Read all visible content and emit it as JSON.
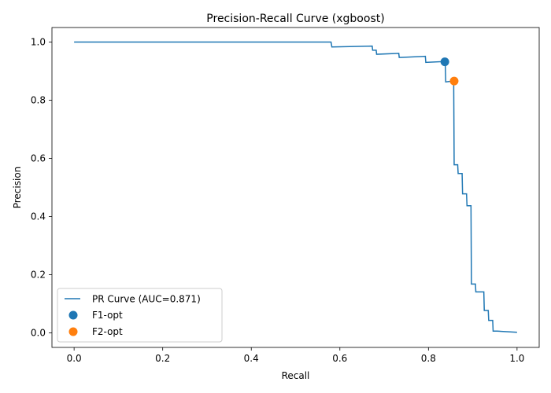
{
  "chart_data": {
    "type": "line",
    "title": "Precision-Recall Curve (xgboost)",
    "xlabel": "Recall",
    "ylabel": "Precision",
    "xlim": [
      -0.05,
      1.05
    ],
    "ylim": [
      -0.05,
      1.05
    ],
    "xticks": [
      0.0,
      0.2,
      0.4,
      0.6,
      0.8,
      1.0
    ],
    "xtick_labels": [
      "0.0",
      "0.2",
      "0.4",
      "0.6",
      "0.8",
      "1.0"
    ],
    "yticks": [
      0.0,
      0.2,
      0.4,
      0.6,
      0.8,
      1.0
    ],
    "ytick_labels": [
      "0.0",
      "0.2",
      "0.4",
      "0.6",
      "0.8",
      "1.0"
    ],
    "grid": false,
    "legend_position": "lower-left",
    "series": [
      {
        "name": "PR Curve (AUC=0.871)",
        "color": "#1f77b4",
        "points": [
          [
            0.0,
            1.0
          ],
          [
            0.58,
            1.0
          ],
          [
            0.582,
            0.983
          ],
          [
            0.673,
            0.986
          ],
          [
            0.674,
            0.972
          ],
          [
            0.682,
            0.972
          ],
          [
            0.683,
            0.958
          ],
          [
            0.733,
            0.961
          ],
          [
            0.734,
            0.947
          ],
          [
            0.793,
            0.951
          ],
          [
            0.794,
            0.93
          ],
          [
            0.836,
            0.933
          ],
          [
            0.837,
            0.92
          ],
          [
            0.838,
            0.92
          ],
          [
            0.839,
            0.863
          ],
          [
            0.856,
            0.866
          ],
          [
            0.857,
            0.866
          ],
          [
            0.858,
            0.578
          ],
          [
            0.866,
            0.578
          ],
          [
            0.867,
            0.548
          ],
          [
            0.876,
            0.548
          ],
          [
            0.877,
            0.478
          ],
          [
            0.886,
            0.478
          ],
          [
            0.887,
            0.437
          ],
          [
            0.896,
            0.437
          ],
          [
            0.897,
            0.168
          ],
          [
            0.906,
            0.168
          ],
          [
            0.907,
            0.141
          ],
          [
            0.925,
            0.141
          ],
          [
            0.926,
            0.077
          ],
          [
            0.935,
            0.077
          ],
          [
            0.936,
            0.043
          ],
          [
            0.945,
            0.043
          ],
          [
            0.946,
            0.006
          ],
          [
            0.955,
            0.006
          ],
          [
            1.0,
            0.002
          ]
        ]
      }
    ],
    "markers": [
      {
        "name": "F1-opt",
        "x": 0.837,
        "y": 0.932,
        "color": "#1f77b4"
      },
      {
        "name": "F2-opt",
        "x": 0.858,
        "y": 0.866,
        "color": "#ff7f0e"
      }
    ]
  }
}
